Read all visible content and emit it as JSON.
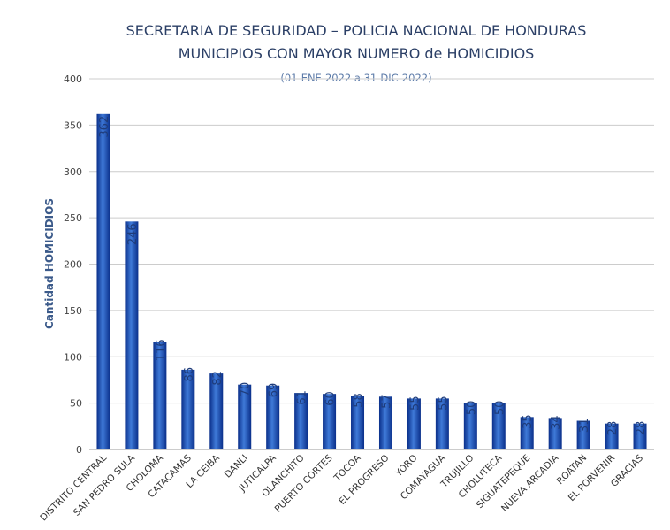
{
  "chart_data": {
    "type": "bar",
    "title_line1": "SECRETARIA DE SEGURIDAD – POLICIA NACIONAL DE HONDURAS",
    "title_line2": "MUNICIPIOS CON MAYOR NUMERO de HOMICIDIOS",
    "subtitle": "(01-ENE-2022 a 31-DIC-2022)",
    "ylabel": "Cantidad HOMICIDIOS",
    "xlabel": "",
    "ylim": [
      0,
      400
    ],
    "yticks": [
      0,
      50,
      100,
      150,
      200,
      250,
      300,
      350,
      400
    ],
    "grid": true,
    "bar_color": "#1f4fb0",
    "bar_color_dark": "#0a2f8a",
    "bar_color_light": "#3f7ad8",
    "categories": [
      "DISTRITO CENTRAL",
      "SAN PEDRO SULA",
      "CHOLOMA",
      "CATACAMAS",
      "LA CEIBA",
      "DANLI",
      "JUTICALPA",
      "OLANCHITO",
      "PUERTO CORTES",
      "TOCOA",
      "EL PROGRESO",
      "YORO",
      "COMAYAGUA",
      "TRUJILLO",
      "CHOLUTECA",
      "SIGUATEPEQUE",
      "NUEVA ARCADIA",
      "ROATAN",
      "EL PORVENIR",
      "GRACIAS"
    ],
    "values": [
      362,
      246,
      116,
      86,
      82,
      70,
      69,
      61,
      60,
      58,
      57,
      55,
      55,
      50,
      50,
      35,
      34,
      31,
      28,
      28
    ]
  }
}
